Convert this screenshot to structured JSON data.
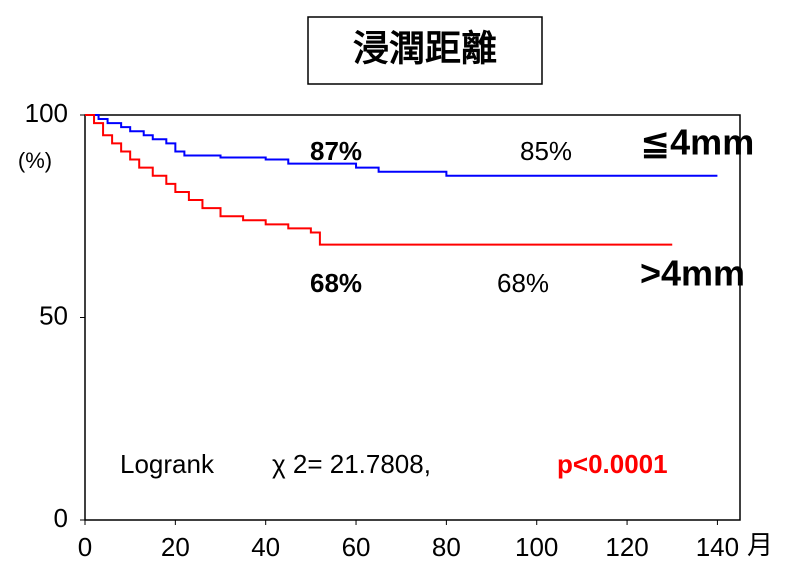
{
  "chart_data": {
    "type": "step",
    "title": "浸潤距離",
    "y_label": "(%)",
    "x_label": "月",
    "xlim": [
      0,
      145
    ],
    "ylim": [
      0,
      100
    ],
    "xticks": [
      0,
      20,
      40,
      60,
      80,
      100,
      120,
      140
    ],
    "yticks": [
      0,
      50,
      100
    ],
    "series": [
      {
        "name": "≦4mm",
        "color": "#0000ff",
        "x": [
          0,
          3,
          5,
          8,
          10,
          13,
          15,
          18,
          20,
          22,
          30,
          40,
          45,
          60,
          65,
          80,
          140
        ],
        "values": [
          100,
          99,
          98,
          97,
          96,
          95,
          94,
          93,
          91,
          90,
          89.5,
          89,
          88,
          87,
          86,
          85,
          85
        ]
      },
      {
        "name": ">4mm",
        "color": "#ff0000",
        "x": [
          0,
          2,
          4,
          6,
          8,
          10,
          12,
          15,
          18,
          20,
          23,
          26,
          30,
          35,
          40,
          45,
          50,
          52,
          130
        ],
        "values": [
          100,
          98,
          95,
          93,
          91,
          89,
          87,
          85,
          83,
          81,
          79,
          77,
          75,
          74,
          73,
          72,
          71,
          68,
          68
        ]
      }
    ],
    "annotations": [
      "87%",
      "85%",
      "68%",
      "68%"
    ],
    "stat_text": [
      "Logrank",
      "χ 2= 21.7808,",
      "p<0.0001"
    ]
  }
}
